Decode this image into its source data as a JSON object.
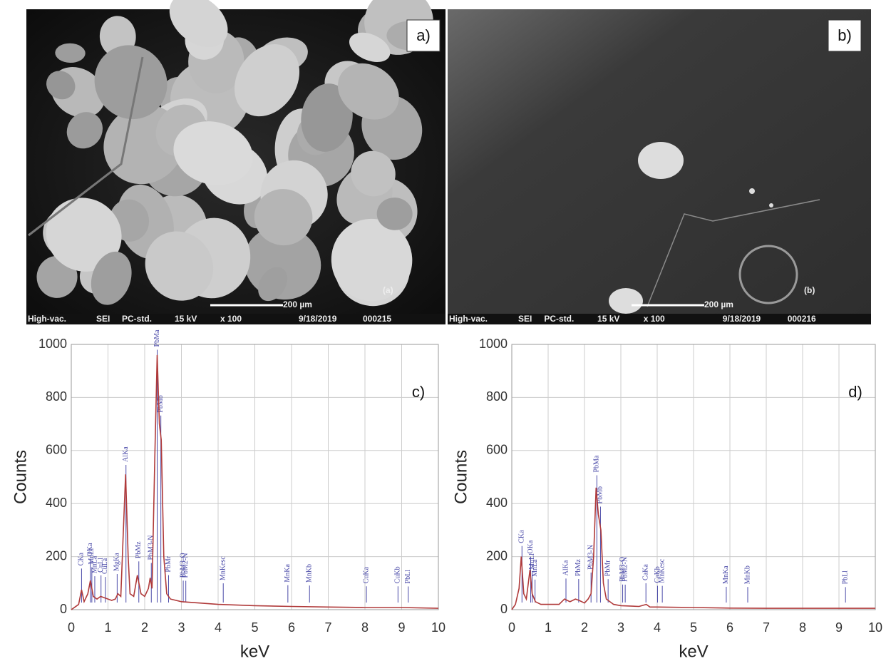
{
  "images": [
    {
      "label": "a)",
      "inset": "(a)",
      "scale": "200 µm",
      "info": [
        "High-vac.",
        "SEI",
        "PC-std.",
        "15 kV",
        "x 100",
        "9/18/2019",
        "000215"
      ]
    },
    {
      "label": "b)",
      "inset": "(b)",
      "scale": "200 µm",
      "info": [
        "High-vac.",
        "SEI",
        "PC-std.",
        "15 kV",
        "x 100",
        "9/18/2019",
        "000216"
      ]
    }
  ],
  "chart_data": [
    {
      "type": "line",
      "label": "c)",
      "xlabel": "keV",
      "ylabel": "Counts",
      "grid": true,
      "xlim": [
        0,
        10
      ],
      "ylim": [
        0,
        1000
      ],
      "xticks": [
        0,
        1,
        2,
        3,
        4,
        5,
        6,
        7,
        8,
        9,
        10
      ],
      "yticks": [
        0,
        200,
        400,
        600,
        800,
        1000
      ],
      "x": [
        0,
        0.1,
        0.2,
        0.28,
        0.35,
        0.45,
        0.52,
        0.6,
        0.7,
        0.8,
        0.9,
        1.0,
        1.1,
        1.2,
        1.27,
        1.35,
        1.42,
        1.48,
        1.55,
        1.6,
        1.7,
        1.8,
        1.9,
        2.0,
        2.1,
        2.15,
        2.2,
        2.28,
        2.34,
        2.4,
        2.45,
        2.52,
        2.6,
        2.7,
        3.0,
        3.5,
        4,
        5,
        6,
        7,
        8,
        9,
        10
      ],
      "series": [
        {
          "color": "#b03a3a",
          "values": [
            0,
            10,
            20,
            75,
            30,
            60,
            110,
            50,
            40,
            50,
            45,
            40,
            35,
            40,
            60,
            50,
            300,
            510,
            200,
            60,
            50,
            130,
            60,
            50,
            80,
            120,
            80,
            600,
            960,
            700,
            640,
            200,
            60,
            40,
            30,
            25,
            20,
            15,
            12,
            10,
            8,
            8,
            5
          ]
        }
      ],
      "markers": [
        {
          "label": "CKa",
          "x": 0.28
        },
        {
          "label": "OKa",
          "x": 0.52
        },
        {
          "label": "MnLl",
          "x": 0.56
        },
        {
          "label": "MnLa",
          "x": 0.64
        },
        {
          "label": "CuLl",
          "x": 0.81
        },
        {
          "label": "CuLa",
          "x": 0.93
        },
        {
          "label": "MgKa",
          "x": 1.25
        },
        {
          "label": "AlKa",
          "x": 1.49
        },
        {
          "label": "PbMz",
          "x": 1.84
        },
        {
          "label": "PbM3-N",
          "x": 2.18
        },
        {
          "label": "PbMa",
          "x": 2.34
        },
        {
          "label": "PbMb",
          "x": 2.44
        },
        {
          "label": "PbMr",
          "x": 2.65
        },
        {
          "label": "PbM3-O",
          "x": 3.05
        },
        {
          "label": "PbM2-N",
          "x": 3.12
        },
        {
          "label": "MnKesc",
          "x": 4.14
        },
        {
          "label": "MnKa",
          "x": 5.9
        },
        {
          "label": "MnKb",
          "x": 6.49
        },
        {
          "label": "CuKa",
          "x": 8.04
        },
        {
          "label": "CuKb",
          "x": 8.9
        },
        {
          "label": "PbLl",
          "x": 9.18
        }
      ]
    },
    {
      "type": "line",
      "label": "d)",
      "xlabel": "keV",
      "ylabel": "Counts",
      "grid": true,
      "xlim": [
        0,
        10
      ],
      "ylim": [
        0,
        1000
      ],
      "xticks": [
        0,
        1,
        2,
        3,
        4,
        5,
        6,
        7,
        8,
        9,
        10
      ],
      "yticks": [
        0,
        200,
        400,
        600,
        800,
        1000
      ],
      "x": [
        0,
        0.1,
        0.2,
        0.26,
        0.33,
        0.4,
        0.5,
        0.56,
        0.65,
        0.8,
        1.0,
        1.3,
        1.45,
        1.6,
        1.75,
        1.85,
        2.0,
        2.1,
        2.18,
        2.25,
        2.32,
        2.38,
        2.45,
        2.52,
        2.6,
        2.8,
        3.0,
        3.5,
        3.7,
        3.8,
        4,
        5,
        6,
        7,
        8,
        9,
        10
      ],
      "series": [
        {
          "color": "#b03a3a",
          "values": [
            0,
            20,
            80,
            200,
            60,
            40,
            150,
            60,
            30,
            20,
            20,
            20,
            40,
            30,
            40,
            35,
            25,
            40,
            60,
            200,
            460,
            360,
            300,
            100,
            40,
            20,
            15,
            12,
            20,
            10,
            10,
            8,
            6,
            5,
            5,
            5,
            5
          ]
        }
      ],
      "markers": [
        {
          "label": "CKa",
          "x": 0.28
        },
        {
          "label": "OKa",
          "x": 0.52
        },
        {
          "label": "MnLl",
          "x": 0.56
        },
        {
          "label": "MnLa",
          "x": 0.64
        },
        {
          "label": "AlKa",
          "x": 1.49
        },
        {
          "label": "PbMz",
          "x": 1.84
        },
        {
          "label": "PbM3-N",
          "x": 2.18
        },
        {
          "label": "PbMa",
          "x": 2.34
        },
        {
          "label": "PbMb",
          "x": 2.44
        },
        {
          "label": "PbMr",
          "x": 2.65
        },
        {
          "label": "PbM3-O",
          "x": 3.05
        },
        {
          "label": "PbM2-N",
          "x": 3.12
        },
        {
          "label": "CaKa",
          "x": 3.69
        },
        {
          "label": "CaKb",
          "x": 4.01
        },
        {
          "label": "MnKesc",
          "x": 4.14
        },
        {
          "label": "MnKa",
          "x": 5.9
        },
        {
          "label": "MnKb",
          "x": 6.49
        },
        {
          "label": "PbLl",
          "x": 9.18
        }
      ]
    }
  ]
}
